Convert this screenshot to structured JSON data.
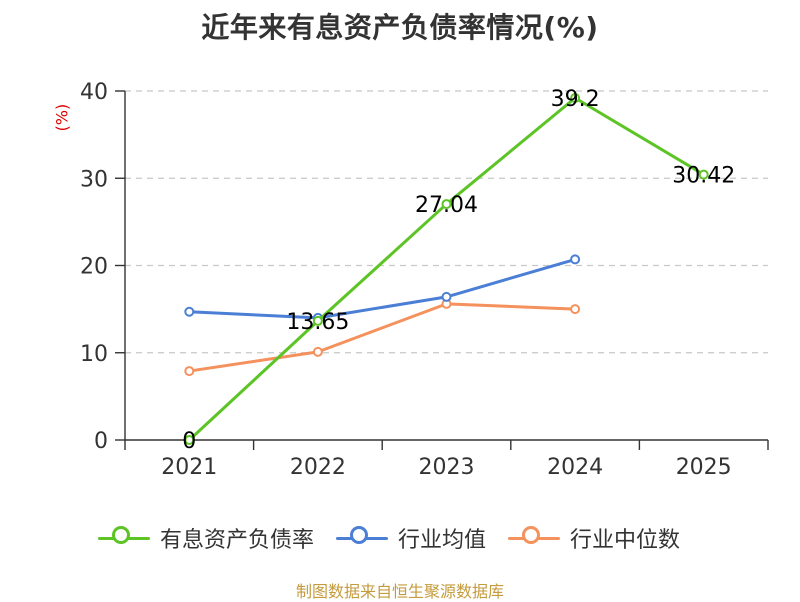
{
  "chart_data": {
    "type": "line",
    "title": "近年来有息资产负债率情况(%)",
    "ylabel": "(%)",
    "xlabel": "",
    "ylim": [
      0,
      40
    ],
    "yticks": [
      0,
      10,
      20,
      30,
      40
    ],
    "categories": [
      "2021",
      "2022",
      "2023",
      "2024",
      "2025"
    ],
    "grid": true,
    "legend_position": "bottom",
    "series": [
      {
        "name": "有息资产负债率",
        "color": "#5cc425",
        "values": [
          0,
          13.65,
          27.04,
          39.2,
          30.42
        ],
        "labels": [
          "0",
          "13.65",
          "27.04",
          "39.2",
          "30.42"
        ]
      },
      {
        "name": "行业均值",
        "color": "#4b7fd6",
        "values": [
          14.7,
          14.0,
          16.4,
          20.7,
          null
        ],
        "labels": []
      },
      {
        "name": "行业中位数",
        "color": "#f4915c",
        "values": [
          7.9,
          10.1,
          15.6,
          15.0,
          null
        ],
        "labels": []
      }
    ],
    "source": "制图数据来自恒生聚源数据库"
  }
}
